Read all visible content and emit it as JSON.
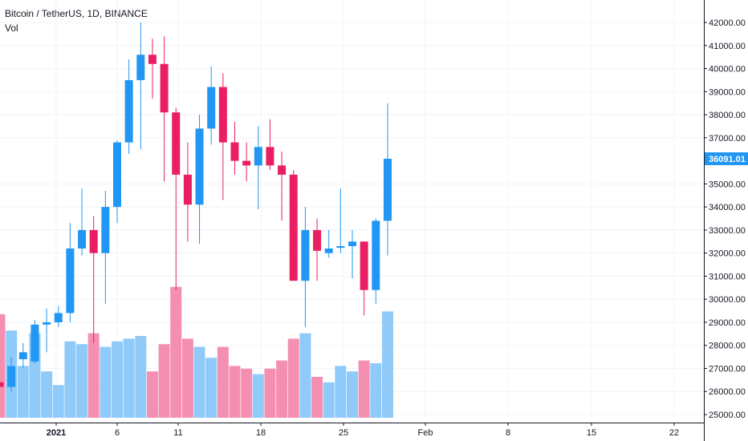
{
  "header": {
    "symbol": "Bitcoin / TetherUS, 1D, BINANCE",
    "volume_label": "Vol"
  },
  "chart_data": {
    "type": "candlestick",
    "symbol": "Bitcoin / TetherUS",
    "interval": "1D",
    "exchange": "BINANCE",
    "ylim": [
      24800,
      42700
    ],
    "y_ticks": [
      "42000.00",
      "41000.00",
      "40000.00",
      "39000.00",
      "38000.00",
      "37000.00",
      "35000.00",
      "34000.00",
      "33000.00",
      "32000.00",
      "31000.00",
      "30000.00",
      "29000.00",
      "28000.00",
      "27000.00",
      "26000.00",
      "25000.00"
    ],
    "x_ticks": [
      "2021",
      "6",
      "11",
      "18",
      "25",
      "Feb",
      "8",
      "15",
      "22"
    ],
    "last_price": "36091.01",
    "colors": {
      "up": "#2196f3",
      "down": "#e91e63",
      "vol_up": "#90caf9",
      "vol_down": "#f48fb1",
      "grid": "#f0f3fa",
      "axis": "#131722"
    },
    "candles": [
      {
        "open": 26400,
        "high": 28400,
        "low": 25900,
        "close": 26200
      },
      {
        "open": 26200,
        "high": 27500,
        "low": 26000,
        "close": 27100
      },
      {
        "open": 27400,
        "high": 28100,
        "low": 27000,
        "close": 27700
      },
      {
        "open": 27300,
        "high": 29100,
        "low": 27200,
        "close": 28900
      },
      {
        "open": 28900,
        "high": 29600,
        "low": 27700,
        "close": 29000
      },
      {
        "open": 29000,
        "high": 29700,
        "low": 28800,
        "close": 29400
      },
      {
        "open": 29400,
        "high": 33300,
        "low": 29000,
        "close": 32200
      },
      {
        "open": 32200,
        "high": 34800,
        "low": 31900,
        "close": 33000
      },
      {
        "open": 33000,
        "high": 33600,
        "low": 28100,
        "close": 32000
      },
      {
        "open": 32000,
        "high": 34700,
        "low": 29800,
        "close": 34000
      },
      {
        "open": 34000,
        "high": 36900,
        "low": 33300,
        "close": 36800
      },
      {
        "open": 36800,
        "high": 40400,
        "low": 36300,
        "close": 39500
      },
      {
        "open": 39500,
        "high": 42000,
        "low": 36500,
        "close": 40600
      },
      {
        "open": 40600,
        "high": 41300,
        "low": 38700,
        "close": 40200
      },
      {
        "open": 40200,
        "high": 41400,
        "low": 35100,
        "close": 38100
      },
      {
        "open": 38100,
        "high": 38300,
        "low": 30400,
        "close": 35400
      },
      {
        "open": 35400,
        "high": 36800,
        "low": 32500,
        "close": 34100
      },
      {
        "open": 34100,
        "high": 38000,
        "low": 32400,
        "close": 37400
      },
      {
        "open": 37400,
        "high": 40100,
        "low": 36700,
        "close": 39200
      },
      {
        "open": 39200,
        "high": 39800,
        "low": 34300,
        "close": 36800
      },
      {
        "open": 36800,
        "high": 37700,
        "low": 35400,
        "close": 36000
      },
      {
        "open": 36000,
        "high": 36800,
        "low": 35100,
        "close": 35800
      },
      {
        "open": 35800,
        "high": 37500,
        "low": 33900,
        "close": 36600
      },
      {
        "open": 36600,
        "high": 37800,
        "low": 35600,
        "close": 35800
      },
      {
        "open": 35800,
        "high": 36400,
        "low": 33400,
        "close": 35400
      },
      {
        "open": 35400,
        "high": 35600,
        "low": 30800,
        "close": 30800
      },
      {
        "open": 30800,
        "high": 34000,
        "low": 28800,
        "close": 33000
      },
      {
        "open": 33000,
        "high": 33500,
        "low": 30800,
        "close": 32100
      },
      {
        "open": 32000,
        "high": 33000,
        "low": 31800,
        "close": 32200
      },
      {
        "open": 32300,
        "high": 34800,
        "low": 32000,
        "close": 32300
      },
      {
        "open": 32300,
        "high": 33000,
        "low": 30900,
        "close": 32500
      },
      {
        "open": 32500,
        "high": 32500,
        "low": 29300,
        "close": 30400
      },
      {
        "open": 30400,
        "high": 33500,
        "low": 29800,
        "close": 33400
      },
      {
        "open": 33400,
        "high": 38500,
        "low": 31900,
        "close": 36091
      }
    ],
    "volume": [
      0.38,
      0.32,
      0.19,
      0.31,
      0.17,
      0.12,
      0.28,
      0.27,
      0.31,
      0.26,
      0.28,
      0.29,
      0.3,
      0.17,
      0.27,
      0.48,
      0.29,
      0.26,
      0.22,
      0.26,
      0.19,
      0.18,
      0.16,
      0.18,
      0.21,
      0.29,
      0.31,
      0.15,
      0.13,
      0.19,
      0.17,
      0.21,
      0.2,
      0.39
    ]
  }
}
